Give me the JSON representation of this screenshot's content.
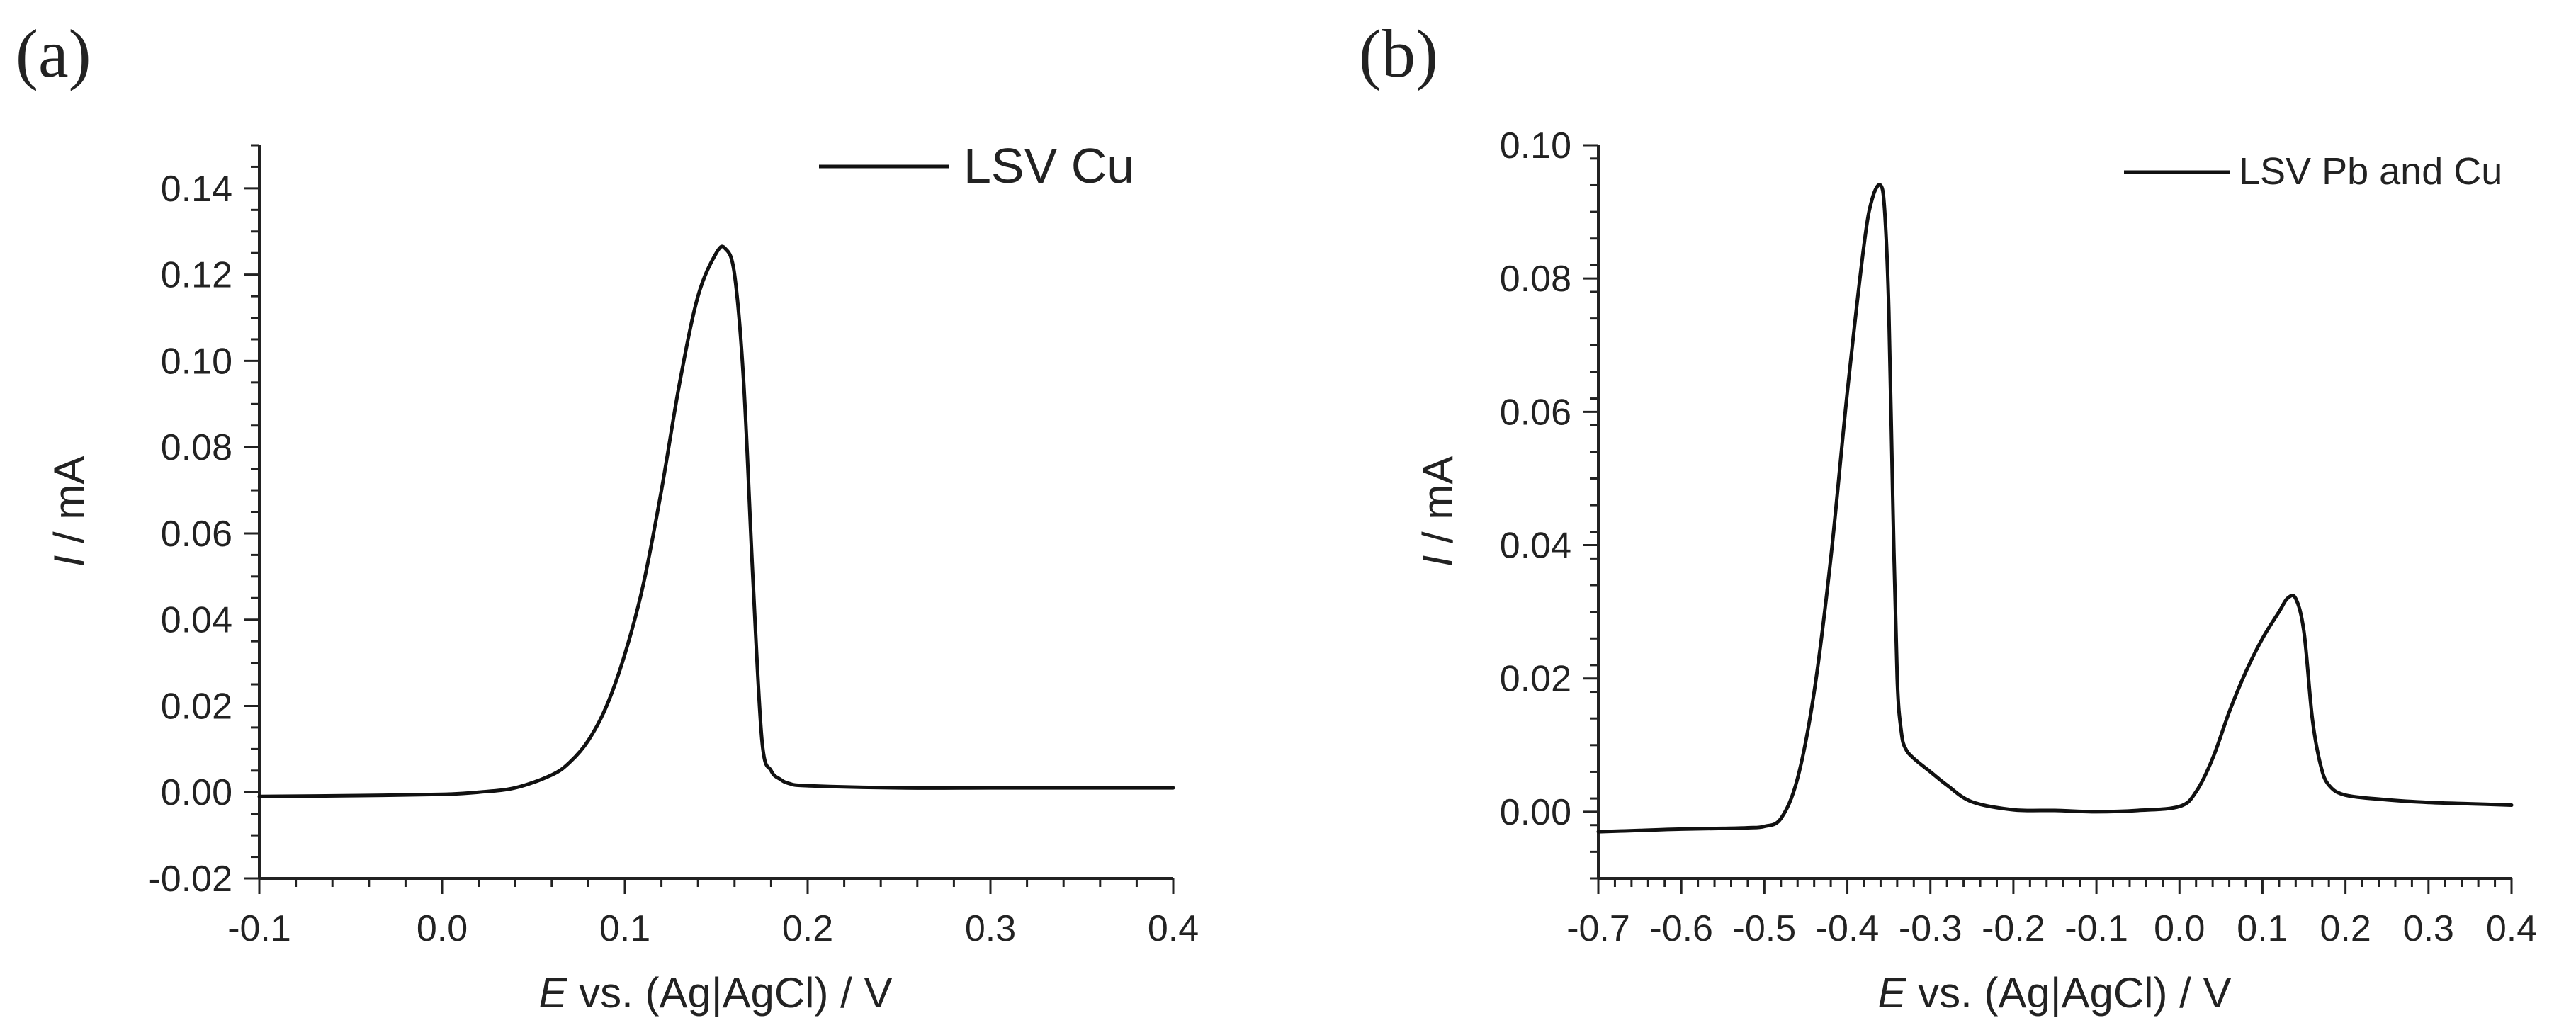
{
  "chart_data": [
    {
      "panel": "(a)",
      "type": "line",
      "xlabel_italic": "E",
      "xlabel_rest": " vs. (Ag|AgCl) / V",
      "ylabel_italic": "I",
      "ylabel_rest": " / mA",
      "xlim": [
        -0.1,
        0.4
      ],
      "ylim": [
        -0.02,
        0.15
      ],
      "xticks": [
        -0.1,
        0.0,
        0.1,
        0.2,
        0.3,
        0.4
      ],
      "xtick_labels": [
        "-0.1",
        "0.0",
        "0.1",
        "0.2",
        "0.3",
        "0.4"
      ],
      "yticks": [
        -0.02,
        0.0,
        0.02,
        0.04,
        0.06,
        0.08,
        0.1,
        0.12,
        0.14
      ],
      "ytick_labels": [
        "-0.02",
        "0.00",
        "0.02",
        "0.04",
        "0.06",
        "0.08",
        "0.10",
        "0.12",
        "0.14"
      ],
      "legend": "LSV Cu",
      "series": [
        {
          "name": "LSV Cu",
          "x": [
            -0.1,
            -0.05,
            0.0,
            0.02,
            0.04,
            0.06,
            0.07,
            0.08,
            0.09,
            0.1,
            0.11,
            0.12,
            0.13,
            0.14,
            0.15,
            0.155,
            0.16,
            0.165,
            0.17,
            0.175,
            0.18,
            0.185,
            0.19,
            0.2,
            0.25,
            0.3,
            0.35,
            0.4
          ],
          "y": [
            -0.001,
            -0.0008,
            -0.0005,
            0.0,
            0.001,
            0.004,
            0.007,
            0.012,
            0.02,
            0.032,
            0.048,
            0.07,
            0.095,
            0.115,
            0.125,
            0.126,
            0.12,
            0.095,
            0.05,
            0.012,
            0.005,
            0.003,
            0.002,
            0.0015,
            0.001,
            0.001,
            0.001,
            0.001
          ]
        }
      ]
    },
    {
      "panel": "(b)",
      "type": "line",
      "xlabel_italic": "E",
      "xlabel_rest": " vs. (Ag|AgCl) / V",
      "ylabel_italic": "I",
      "ylabel_rest": " / mA",
      "xlim": [
        -0.7,
        0.4
      ],
      "ylim": [
        -0.01,
        0.1
      ],
      "xticks": [
        -0.7,
        -0.6,
        -0.5,
        -0.4,
        -0.3,
        -0.2,
        -0.1,
        0.0,
        0.1,
        0.2,
        0.3,
        0.4
      ],
      "xtick_labels": [
        "-0.7",
        "-0.6",
        "-0.5",
        "-0.4",
        "-0.3",
        "-0.2",
        "-0.1",
        "0.0",
        "0.1",
        "0.2",
        "0.3",
        "0.4"
      ],
      "yticks": [
        0.0,
        0.02,
        0.04,
        0.06,
        0.08,
        0.1
      ],
      "ytick_labels": [
        "0.00",
        "0.02",
        "0.04",
        "0.06",
        "0.08",
        "0.10"
      ],
      "legend": "LSV Pb and Cu",
      "series": [
        {
          "name": "LSV Pb and Cu",
          "x": [
            -0.7,
            -0.65,
            -0.6,
            -0.55,
            -0.52,
            -0.5,
            -0.48,
            -0.46,
            -0.44,
            -0.42,
            -0.4,
            -0.38,
            -0.37,
            -0.36,
            -0.355,
            -0.35,
            -0.345,
            -0.34,
            -0.335,
            -0.33,
            -0.32,
            -0.3,
            -0.28,
            -0.25,
            -0.2,
            -0.15,
            -0.1,
            -0.05,
            0.0,
            0.02,
            0.04,
            0.06,
            0.08,
            0.1,
            0.12,
            0.13,
            0.14,
            0.15,
            0.16,
            0.17,
            0.18,
            0.2,
            0.25,
            0.3,
            0.35,
            0.4
          ],
          "y": [
            -0.003,
            -0.0028,
            -0.0026,
            -0.0025,
            -0.0024,
            -0.0022,
            -0.001,
            0.005,
            0.018,
            0.038,
            0.063,
            0.085,
            0.092,
            0.094,
            0.09,
            0.075,
            0.045,
            0.02,
            0.012,
            0.0095,
            0.008,
            0.006,
            0.004,
            0.0015,
            0.0003,
            0.0002,
            0.0,
            0.0002,
            0.0008,
            0.003,
            0.008,
            0.015,
            0.021,
            0.026,
            0.03,
            0.032,
            0.032,
            0.027,
            0.014,
            0.007,
            0.004,
            0.0025,
            0.0018,
            0.0014,
            0.0012,
            0.001
          ]
        }
      ]
    }
  ]
}
